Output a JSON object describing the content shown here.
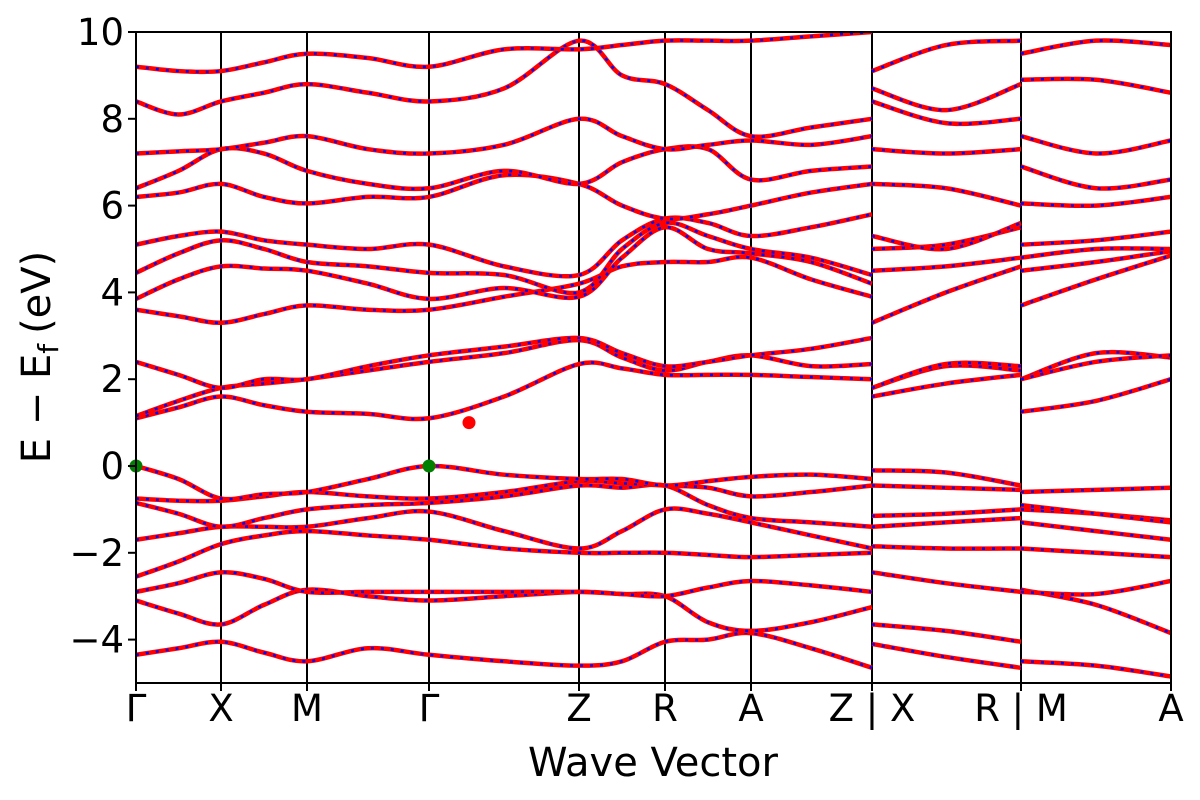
{
  "chart_data": {
    "type": "band-structure",
    "xlabel": "Wave Vector",
    "ylabel": {
      "main": "E − E",
      "sub": "f",
      "unit": "(eV)"
    },
    "xlim": [
      0,
      10.35
    ],
    "ylim": [
      -5,
      10
    ],
    "xticks": [
      {
        "value": 0,
        "label": "Γ"
      },
      {
        "value": 0.85,
        "label": "X"
      },
      {
        "value": 1.71,
        "label": "M"
      },
      {
        "value": 2.93,
        "label": "Γ"
      },
      {
        "value": 4.43,
        "label": "Z"
      },
      {
        "value": 5.29,
        "label": "R"
      },
      {
        "value": 6.15,
        "label": "A"
      },
      {
        "value": 7.36,
        "label": "Z | X"
      },
      {
        "value": 8.85,
        "label": "R | M"
      },
      {
        "value": 10.35,
        "label": "A"
      }
    ],
    "yticks": [
      {
        "value": -4,
        "label": "−4"
      },
      {
        "value": -2,
        "label": "−2"
      },
      0,
      2,
      4,
      6,
      8,
      10
    ],
    "line_color": "#ff0000",
    "dash_color": "#0000ff",
    "x": [
      0,
      0.425,
      0.85,
      1.28,
      1.71,
      2.32,
      2.93,
      3.68,
      4.43,
      4.86,
      5.29,
      5.72,
      6.15,
      6.75,
      7.36,
      7.36,
      7.36,
      8.1,
      8.85,
      8.85,
      8.85,
      9.6,
      10.35
    ],
    "series": [
      {
        "values": [
          -4.35,
          -4.2,
          -4.05,
          -4.3,
          -4.5,
          -4.2,
          -4.35,
          -4.5,
          -4.6,
          -4.5,
          -4.05,
          -4.0,
          -3.85,
          -4.2,
          -4.65,
          null,
          -4.1,
          -4.4,
          -4.65,
          null,
          -4.5,
          -4.6,
          -4.85
        ]
      },
      {
        "values": [
          -3.1,
          -3.4,
          -3.65,
          -3.2,
          -2.85,
          -3.0,
          -3.1,
          -3.0,
          -2.9,
          -2.95,
          -3.0,
          -3.6,
          -3.8,
          -3.6,
          -3.25,
          null,
          -3.65,
          -3.8,
          -4.05,
          null,
          -2.85,
          -3.2,
          -3.85
        ]
      },
      {
        "values": [
          -2.9,
          -2.7,
          -2.45,
          -2.6,
          -2.9,
          -2.9,
          -2.9,
          -2.9,
          -2.9,
          -2.95,
          -3.0,
          -2.8,
          -2.65,
          -2.75,
          -2.9,
          null,
          -2.45,
          -2.7,
          -2.9,
          null,
          -2.9,
          -2.95,
          -2.65
        ]
      },
      {
        "values": [
          -2.55,
          -2.2,
          -1.8,
          -1.6,
          -1.5,
          -1.6,
          -1.7,
          -1.9,
          -2.0,
          -2.0,
          -2.0,
          -2.05,
          -2.1,
          -2.05,
          -2.0,
          null,
          -1.85,
          -1.9,
          -1.9,
          null,
          -1.9,
          -2.0,
          -2.1
        ]
      },
      {
        "values": [
          -1.7,
          -1.55,
          -1.4,
          -1.4,
          -1.4,
          -1.2,
          -1.05,
          -1.5,
          -1.9,
          -1.5,
          -1.0,
          -1.1,
          -1.3,
          -1.6,
          -1.9,
          null,
          -1.4,
          -1.3,
          -1.2,
          null,
          -1.3,
          -1.5,
          -1.7
        ]
      },
      {
        "values": [
          -0.85,
          -1.1,
          -1.4,
          -1.2,
          -1.0,
          -0.9,
          -0.85,
          -0.7,
          -0.45,
          -0.5,
          -0.45,
          -0.9,
          -1.2,
          -1.3,
          -1.4,
          null,
          -1.15,
          -1.1,
          -1.0,
          null,
          -1.0,
          -1.1,
          -1.25
        ]
      },
      {
        "values": [
          -0.75,
          -0.8,
          -0.8,
          -0.7,
          -0.6,
          -0.7,
          -0.75,
          -0.6,
          -0.35,
          -0.4,
          -0.45,
          -0.5,
          -0.7,
          -0.6,
          -0.45,
          null,
          -0.45,
          -0.5,
          -0.55,
          null,
          -0.9,
          -1.1,
          -1.3
        ]
      },
      {
        "values": [
          0,
          -0.3,
          -0.75,
          -0.65,
          -0.6,
          -0.3,
          0,
          -0.2,
          -0.3,
          -0.3,
          -0.45,
          -0.35,
          -0.25,
          -0.2,
          -0.3,
          null,
          -0.1,
          -0.15,
          -0.45,
          null,
          -0.6,
          -0.55,
          -0.5
        ]
      },
      {
        "values": [
          1.1,
          1.35,
          1.6,
          1.4,
          1.25,
          1.2,
          1.1,
          1.6,
          2.35,
          2.25,
          2.1,
          2.1,
          2.1,
          2.05,
          2.0,
          null,
          1.6,
          1.9,
          2.1,
          null,
          1.25,
          1.5,
          2.0
        ]
      },
      {
        "values": [
          1.15,
          1.5,
          1.8,
          1.9,
          2.0,
          2.2,
          2.4,
          2.6,
          2.9,
          2.5,
          2.2,
          2.4,
          2.55,
          2.3,
          2.35,
          null,
          1.8,
          2.3,
          2.2,
          null,
          2.0,
          2.6,
          2.5
        ]
      },
      {
        "values": [
          2.4,
          2.1,
          1.8,
          2.0,
          2.0,
          2.3,
          2.55,
          2.75,
          2.95,
          2.6,
          2.3,
          2.4,
          2.55,
          2.7,
          2.95,
          null,
          1.8,
          2.35,
          2.3,
          null,
          2.0,
          2.4,
          2.55
        ]
      },
      {
        "values": [
          3.6,
          3.45,
          3.3,
          3.5,
          3.7,
          3.6,
          3.6,
          3.9,
          4.2,
          4.6,
          4.7,
          4.7,
          4.8,
          4.3,
          3.9,
          null,
          3.3,
          4.0,
          4.6,
          null,
          3.7,
          4.3,
          4.85
        ]
      },
      {
        "values": [
          3.85,
          4.3,
          4.6,
          4.55,
          4.5,
          4.2,
          3.85,
          4.1,
          3.9,
          4.8,
          5.5,
          5.0,
          4.9,
          4.7,
          4.2,
          null,
          4.5,
          4.6,
          4.8,
          null,
          4.5,
          4.7,
          4.95
        ]
      },
      {
        "values": [
          4.45,
          4.9,
          5.2,
          5.0,
          4.7,
          4.6,
          4.45,
          4.4,
          4.0,
          5.0,
          5.6,
          5.3,
          5.0,
          4.8,
          4.4,
          null,
          5.0,
          5.1,
          5.5,
          null,
          4.8,
          5.0,
          5.0
        ]
      },
      {
        "values": [
          5.1,
          5.3,
          5.4,
          5.2,
          5.1,
          5.0,
          5.1,
          4.6,
          4.4,
          5.2,
          5.7,
          5.6,
          5.3,
          5.5,
          5.8,
          null,
          5.3,
          5.0,
          5.6,
          null,
          5.1,
          5.2,
          5.4
        ]
      },
      {
        "values": [
          6.2,
          6.3,
          6.5,
          6.2,
          6.05,
          6.2,
          6.2,
          6.7,
          6.5,
          6.0,
          5.7,
          5.8,
          6.0,
          6.3,
          6.5,
          null,
          6.5,
          6.4,
          6.0,
          null,
          6.05,
          6.0,
          6.2
        ]
      },
      {
        "values": [
          6.4,
          6.8,
          7.3,
          7.2,
          6.8,
          6.5,
          6.4,
          6.8,
          6.5,
          7.0,
          7.3,
          7.3,
          6.6,
          6.8,
          6.9,
          null,
          7.3,
          7.2,
          7.3,
          null,
          6.9,
          6.4,
          6.6
        ]
      },
      {
        "values": [
          7.2,
          7.25,
          7.3,
          7.45,
          7.6,
          7.3,
          7.2,
          7.4,
          8.0,
          7.6,
          7.3,
          7.4,
          7.5,
          7.4,
          7.6,
          null,
          8.4,
          7.9,
          8.0,
          null,
          7.6,
          7.2,
          7.5
        ]
      },
      {
        "values": [
          8.4,
          8.1,
          8.4,
          8.6,
          8.8,
          8.6,
          8.4,
          8.7,
          9.8,
          9.0,
          8.8,
          8.2,
          7.6,
          7.8,
          8.0,
          null,
          8.7,
          8.2,
          8.8,
          null,
          8.9,
          8.9,
          8.6
        ]
      },
      {
        "values": [
          9.2,
          9.1,
          9.1,
          9.3,
          9.5,
          9.4,
          9.2,
          9.6,
          9.6,
          9.7,
          9.8,
          9.8,
          9.8,
          9.9,
          10.0,
          null,
          9.1,
          9.7,
          9.8,
          null,
          9.5,
          9.8,
          9.7
        ]
      }
    ],
    "points": [
      {
        "color": "#008000",
        "x": [
          0,
          2.93
        ],
        "values": [
          0,
          0
        ]
      },
      {
        "color": "#ff0000",
        "x": [
          3.33
        ],
        "values": [
          1.0
        ]
      }
    ]
  }
}
